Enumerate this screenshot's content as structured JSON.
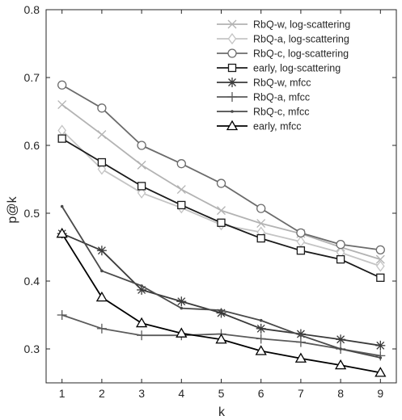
{
  "chart_data": {
    "type": "line",
    "title": "",
    "xlabel": "k",
    "ylabel": "p@k",
    "xlim": [
      0.6,
      9.4
    ],
    "ylim": [
      0.25,
      0.8
    ],
    "xticks": [
      1,
      2,
      3,
      4,
      5,
      6,
      7,
      8,
      9
    ],
    "yticks": [
      0.3,
      0.4,
      0.5,
      0.6,
      0.7,
      0.8
    ],
    "ytick_labels": [
      "0.3",
      "0.4",
      "0.5",
      "0.6",
      "0.7",
      "0.8"
    ],
    "grid": false,
    "legend": "top-right",
    "x": [
      1,
      2,
      3,
      4,
      5,
      6,
      7,
      8,
      9
    ],
    "series": [
      {
        "name": "RbQ-w, log-scattering",
        "marker": "x",
        "color": "#b3b3b3",
        "values": [
          0.66,
          0.616,
          0.571,
          0.535,
          0.504,
          0.485,
          0.47,
          0.45,
          0.432
        ]
      },
      {
        "name": "RbQ-a, log-scattering",
        "marker": "diamond",
        "color": "#c4c4c4",
        "values": [
          0.622,
          0.565,
          0.53,
          0.508,
          0.483,
          0.472,
          0.458,
          0.442,
          0.422
        ]
      },
      {
        "name": "RbQ-c, log-scattering",
        "marker": "circle",
        "color": "#6b6b6b",
        "values": [
          0.689,
          0.655,
          0.6,
          0.573,
          0.544,
          0.507,
          0.471,
          0.454,
          0.446
        ]
      },
      {
        "name": "early, log-scattering",
        "marker": "square",
        "color": "#1a1a1a",
        "values": [
          0.61,
          0.575,
          0.54,
          0.512,
          0.486,
          0.463,
          0.445,
          0.432,
          0.405
        ]
      },
      {
        "name": "RbQ-w, mfcc",
        "marker": "asterisk",
        "color": "#3a3a3a",
        "values": [
          0.47,
          0.445,
          0.387,
          0.37,
          0.353,
          0.33,
          0.322,
          0.314,
          0.305
        ]
      },
      {
        "name": "RbQ-a, mfcc",
        "marker": "plus",
        "color": "#5a5a5a",
        "values": [
          0.35,
          0.33,
          0.32,
          0.32,
          0.322,
          0.315,
          0.31,
          0.3,
          0.29
        ]
      },
      {
        "name": "RbQ-c, mfcc",
        "marker": "dot",
        "color": "#4a4a4a",
        "values": [
          0.51,
          0.415,
          0.393,
          0.36,
          0.357,
          0.342,
          0.32,
          0.3,
          0.287
        ]
      },
      {
        "name": "early, mfcc",
        "marker": "triangle",
        "color": "#000000",
        "values": [
          0.47,
          0.376,
          0.338,
          0.323,
          0.314,
          0.297,
          0.286,
          0.276,
          0.265
        ]
      }
    ]
  }
}
